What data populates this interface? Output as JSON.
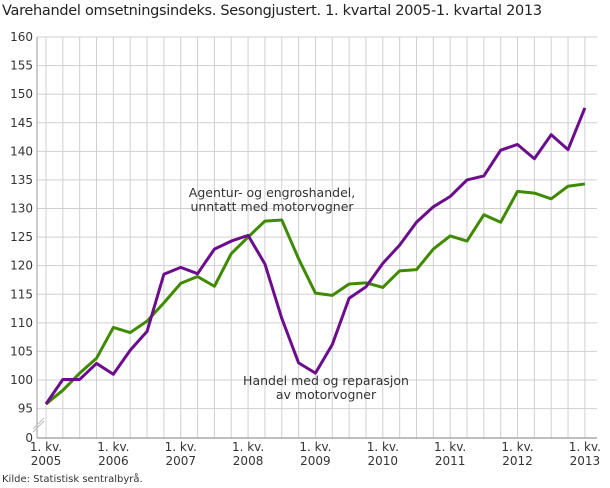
{
  "chart_data": {
    "type": "line",
    "title": "Varehandel omsetningsindeks. Sesongjustert. 1. kvartal 2005-1. kvartal 2013",
    "source": "Kilde: Statistisk sentralbyrå.",
    "y_ticks": [
      "0",
      "95",
      "100",
      "105",
      "110",
      "115",
      "120",
      "125",
      "130",
      "135",
      "140",
      "145",
      "150",
      "155",
      "160"
    ],
    "ylim": [
      95,
      160
    ],
    "y_axis_break": true,
    "grid": true,
    "x_tick_labels": [
      {
        "top": "1. kv.",
        "bottom": "2005"
      },
      {
        "top": "1. kv.",
        "bottom": "2006"
      },
      {
        "top": "1. kv.",
        "bottom": "2007"
      },
      {
        "top": "1. kv.",
        "bottom": "2008"
      },
      {
        "top": "1. kv.",
        "bottom": "2009"
      },
      {
        "top": "1. kv.",
        "bottom": "2010"
      },
      {
        "top": "1. kv.",
        "bottom": "2011"
      },
      {
        "top": "1. kv.",
        "bottom": "2012"
      },
      {
        "top": "1. kv.",
        "bottom": "2013"
      }
    ],
    "x": [
      "2005K1",
      "2005K2",
      "2005K3",
      "2005K4",
      "2006K1",
      "2006K2",
      "2006K3",
      "2006K4",
      "2007K1",
      "2007K2",
      "2007K3",
      "2007K4",
      "2008K1",
      "2008K2",
      "2008K3",
      "2008K4",
      "2009K1",
      "2009K2",
      "2009K3",
      "2009K4",
      "2010K1",
      "2010K2",
      "2010K3",
      "2010K4",
      "2011K1",
      "2011K2",
      "2011K3",
      "2011K4",
      "2012K1",
      "2012K2",
      "2012K3",
      "2012K4",
      "2013K1"
    ],
    "series": [
      {
        "name": "Handel med og reparasjon av motorvogner",
        "label_lines": [
          "Handel med og reparasjon",
          "av motorvogner"
        ],
        "color": "#6b0d8c",
        "values": [
          95.8,
          100.1,
          100.1,
          102.9,
          101.0,
          105.2,
          108.5,
          118.5,
          119.7,
          118.6,
          122.9,
          124.3,
          125.3,
          120.3,
          110.8,
          103.0,
          101.2,
          106.2,
          114.3,
          116.3,
          120.4,
          123.6,
          127.6,
          130.3,
          132.1,
          135.0,
          135.7,
          140.2,
          141.2,
          138.7,
          142.9,
          140.3,
          147.6
        ]
      },
      {
        "name": "Agentur- og engroshandel, unntatt med motorvogner",
        "label_lines": [
          "Agentur- og engroshandel,",
          "unntatt med motorvogner"
        ],
        "color": "#3f8a00",
        "values": [
          95.8,
          98.2,
          101.2,
          103.8,
          109.2,
          108.3,
          110.3,
          113.5,
          116.9,
          118.1,
          116.4,
          122.1,
          125.0,
          127.8,
          128.0,
          121.2,
          115.2,
          114.8,
          116.8,
          117.0,
          116.2,
          119.1,
          119.3,
          122.9,
          125.2,
          124.3,
          128.9,
          127.6,
          133.0,
          132.7,
          131.7,
          133.9,
          134.3
        ]
      }
    ]
  }
}
